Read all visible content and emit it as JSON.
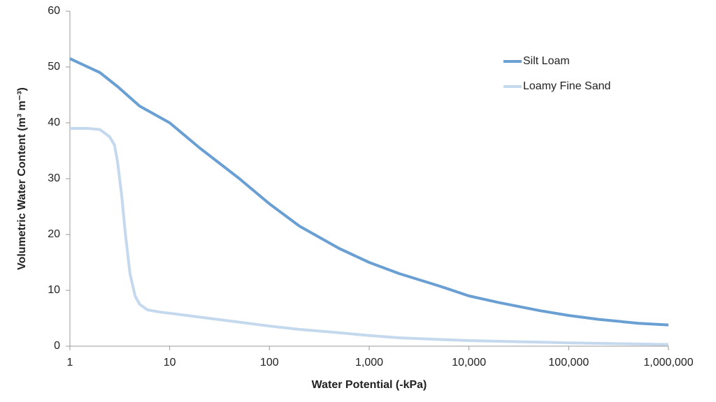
{
  "chart_data": {
    "type": "line",
    "xlabel": "Water Potential (-kPa)",
    "ylabel": "Volumetric Water Content (m³ m⁻³)",
    "xscale": "log",
    "xlim": [
      1,
      1000000
    ],
    "ylim": [
      0,
      60
    ],
    "xticks": [
      1,
      10,
      100,
      {
        "value": 1000,
        "label": "1,000"
      },
      {
        "value": 10000,
        "label": "10,000"
      },
      {
        "value": 100000,
        "label": "100,000"
      },
      {
        "value": 1000000,
        "label": "1,000,000"
      }
    ],
    "yticks": [
      0,
      10,
      20,
      30,
      40,
      50,
      60
    ],
    "grid": false,
    "legend": "upper right",
    "series": [
      {
        "name": "Silt Loam",
        "color": "#6a9fd4",
        "x": [
          1,
          2,
          3,
          5,
          10,
          20,
          50,
          100,
          200,
          500,
          1000,
          2000,
          5000,
          10000,
          20000,
          50000,
          100000,
          200000,
          500000,
          1000000
        ],
        "values": [
          51.5,
          49,
          46.5,
          43,
          40,
          35.5,
          30,
          25.5,
          21.5,
          17.5,
          15,
          13,
          10.8,
          9,
          7.8,
          6.4,
          5.5,
          4.8,
          4.1,
          3.8
        ]
      },
      {
        "name": "Loamy Fine Sand",
        "color": "#c5d9ee",
        "x": [
          1,
          1.5,
          2,
          2.5,
          2.8,
          3,
          3.3,
          3.6,
          4,
          4.5,
          5,
          6,
          8,
          10,
          20,
          50,
          100,
          200,
          500,
          1000,
          2000,
          5000,
          10000,
          100000,
          1000000
        ],
        "values": [
          39,
          39,
          38.8,
          37.5,
          36,
          33,
          27,
          20,
          13,
          9,
          7.5,
          6.5,
          6.1,
          5.9,
          5.2,
          4.3,
          3.6,
          3.0,
          2.4,
          1.9,
          1.5,
          1.2,
          1.0,
          0.6,
          0.3
        ]
      }
    ]
  }
}
